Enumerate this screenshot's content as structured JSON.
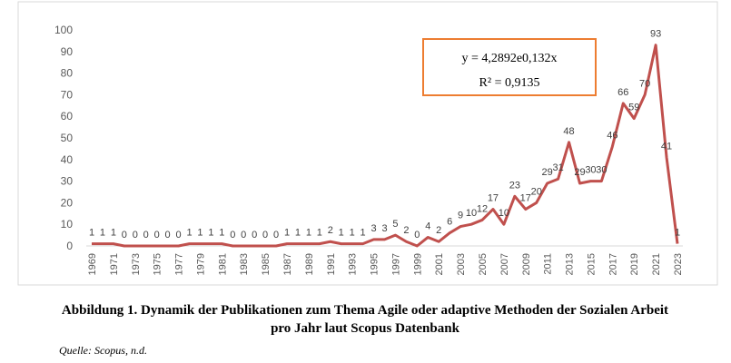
{
  "chart_data": {
    "type": "line",
    "categories": [
      "1969",
      null,
      "1971",
      null,
      "1973",
      null,
      "1975",
      null,
      "1977",
      null,
      "1979",
      null,
      "1981",
      null,
      "1983",
      null,
      "1985",
      null,
      "1987",
      null,
      "1989",
      null,
      "1991",
      null,
      "1993",
      null,
      "1995",
      null,
      "1997",
      null,
      "1999",
      null,
      "2001",
      null,
      "2003",
      null,
      "2005",
      null,
      "2007",
      null,
      "2009",
      null,
      "2011",
      null,
      "2013",
      null,
      "2015",
      null,
      "2017",
      null,
      "2019",
      null,
      "2021",
      null,
      "2023"
    ],
    "series": [
      {
        "name": "Publikationen",
        "color": "#c0504d",
        "values": [
          1,
          1,
          1,
          0,
          0,
          0,
          0,
          0,
          0,
          1,
          1,
          1,
          1,
          0,
          0,
          0,
          0,
          0,
          1,
          1,
          1,
          1,
          2,
          1,
          1,
          1,
          3,
          3,
          5,
          2,
          0,
          4,
          2,
          6,
          9,
          10,
          12,
          17,
          10,
          23,
          17,
          20,
          29,
          31,
          48,
          29,
          30,
          30,
          46,
          66,
          59,
          70,
          93,
          41,
          1
        ]
      }
    ],
    "ylim": [
      0,
      100
    ],
    "yticks": [
      0,
      10,
      20,
      30,
      40,
      50,
      60,
      70,
      80,
      90,
      100
    ],
    "grid": false,
    "annotations": [
      "y = 4,2892e0,132x",
      "R² = 0,9135"
    ],
    "caption": [
      "Abbildung 1. Dynamik der Publikationen zum Thema Agile oder adaptive Methoden der Sozialen Arbeit",
      "pro Jahr laut Scopus Datenbank"
    ],
    "source": "Quelle: Scopus, n.d."
  }
}
